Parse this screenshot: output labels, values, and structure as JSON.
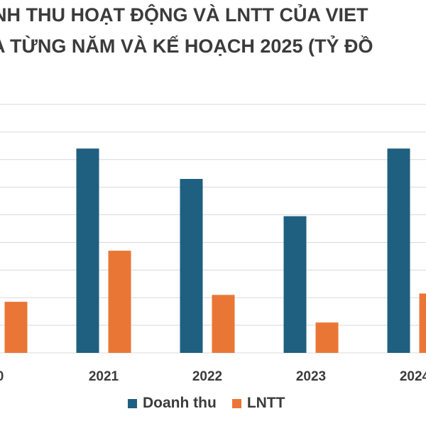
{
  "chart_data": {
    "type": "bar",
    "title_line1": "NH THU HOẠT ĐỘNG VÀ LNTT CỦA VIET",
    "title_line2": "A TỪNG NĂM VÀ KẾ HOẠCH 2025 (TỶ ĐỒ",
    "categories": [
      "0",
      "2021",
      "2022",
      "2023",
      "2024"
    ],
    "series": [
      {
        "name": "Doanh thu",
        "color": "#1f5f80",
        "values": [
          null,
          7.4,
          6.3,
          4.95,
          7.4
        ]
      },
      {
        "name": "LNTT",
        "color": "#ea7636",
        "values": [
          1.85,
          3.7,
          2.1,
          1.1,
          2.15
        ]
      }
    ],
    "ylim": [
      0,
      9
    ],
    "grid": true,
    "legend_position": "bottom"
  }
}
